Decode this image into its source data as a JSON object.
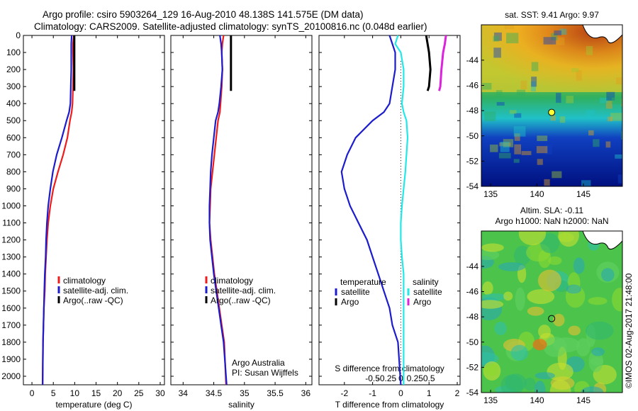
{
  "header": {
    "line1": "Argo profile: csiro 5903264_129 16-Aug-2010 48.138S 141.575E (DM data)",
    "line2": "Climatology: CARS2009. Satellite-adjusted climatology: synTS_20100816.nc (0.048d earlier)"
  },
  "footer_stamp": "©IMOS 02-Aug-2017 21:48:00",
  "colors": {
    "climatology": "#ee1c1c",
    "satellite": "#1c1ccc",
    "argo": "#000000",
    "salinity_satellite": "#22e8e8",
    "salinity_argo": "#dd22dd"
  },
  "chart_data": [
    {
      "type": "line",
      "xlabel": "temperature (deg C)",
      "xticks": [
        0,
        5,
        10,
        15,
        20,
        25,
        30
      ],
      "xlim": [
        -2,
        31
      ],
      "yticks": [
        0,
        100,
        200,
        300,
        400,
        500,
        600,
        700,
        800,
        900,
        1000,
        1100,
        1200,
        1300,
        1400,
        1500,
        1600,
        1700,
        1800,
        1900,
        2000
      ],
      "ylim": [
        2050,
        0
      ],
      "legend": [
        "climatology",
        "satellite-adj. clim.",
        "Argo(..raw -QC)"
      ],
      "series": [
        {
          "name": "climatology",
          "color": "#ee1c1c",
          "x": [
            9.8,
            9.6,
            9.6,
            9.7,
            9.6,
            9.5,
            9.3,
            8.9,
            8.3,
            7.3,
            6.1,
            5.0,
            4.3,
            3.8,
            3.5,
            3.3,
            3.1,
            3.0,
            2.8,
            2.7,
            2.6,
            2.5
          ],
          "y": [
            0,
            50,
            100,
            200,
            300,
            400,
            450,
            500,
            600,
            700,
            800,
            900,
            1000,
            1100,
            1200,
            1300,
            1400,
            1500,
            1600,
            1700,
            1800,
            2050
          ]
        },
        {
          "name": "satellite-adj. clim.",
          "color": "#1c1ccc",
          "x": [
            9.3,
            9.2,
            9.2,
            9.2,
            9.1,
            9.0,
            8.7,
            8.1,
            7.0,
            5.8,
            4.9,
            4.3,
            3.8,
            3.5,
            3.3,
            3.2,
            3.0,
            2.9,
            2.8,
            2.7,
            2.6,
            2.5
          ],
          "y": [
            0,
            50,
            100,
            200,
            300,
            400,
            450,
            500,
            600,
            700,
            800,
            900,
            1000,
            1100,
            1200,
            1300,
            1400,
            1500,
            1600,
            1700,
            1800,
            2050
          ]
        },
        {
          "name": "Argo(..raw -QC)",
          "color": "#000000",
          "x": [
            9.9,
            9.9,
            9.9,
            9.9,
            9.9
          ],
          "y": [
            0,
            100,
            200,
            300,
            325
          ]
        }
      ]
    },
    {
      "type": "line",
      "xlabel": "salinity",
      "xticks": [
        34,
        34.5,
        35,
        35.5,
        36
      ],
      "xlim": [
        33.8,
        36.1
      ],
      "yticks": [
        0,
        100,
        200,
        300,
        400,
        500,
        600,
        700,
        800,
        900,
        1000,
        1100,
        1200,
        1300,
        1400,
        1500,
        1600,
        1700,
        1800,
        1900,
        2000
      ],
      "ylim": [
        2050,
        0
      ],
      "legend": [
        "climatology",
        "satellite-adj. clim.",
        "Argo(..raw -QC)"
      ],
      "annotation": [
        "Argo Australia",
        "PI: Susan Wijffels"
      ],
      "series": [
        {
          "name": "climatology",
          "color": "#ee1c1c",
          "x": [
            34.66,
            34.64,
            34.63,
            34.64,
            34.63,
            34.61,
            34.6,
            34.57,
            34.54,
            34.51,
            34.48,
            34.45,
            34.44,
            34.43,
            34.45,
            34.48,
            34.51,
            34.55,
            34.59,
            34.63,
            34.67,
            34.7
          ],
          "y": [
            0,
            50,
            100,
            200,
            300,
            400,
            450,
            500,
            600,
            700,
            800,
            900,
            1000,
            1100,
            1200,
            1300,
            1400,
            1500,
            1600,
            1700,
            1800,
            2050
          ]
        },
        {
          "name": "satellite-adj. clim.",
          "color": "#1c1ccc",
          "x": [
            34.6,
            34.62,
            34.63,
            34.64,
            34.62,
            34.59,
            34.57,
            34.53,
            34.5,
            34.47,
            34.45,
            34.44,
            34.43,
            34.43,
            34.44,
            34.47,
            34.5,
            34.54,
            34.58,
            34.62,
            34.66,
            34.71
          ],
          "y": [
            0,
            50,
            100,
            200,
            300,
            400,
            450,
            500,
            600,
            700,
            800,
            900,
            1000,
            1100,
            1200,
            1300,
            1400,
            1500,
            1600,
            1700,
            1800,
            2050
          ]
        },
        {
          "name": "Argo(..raw -QC)",
          "color": "#000000",
          "x": [
            34.78,
            34.78,
            34.78,
            34.78,
            34.78
          ],
          "y": [
            0,
            100,
            200,
            300,
            325
          ]
        }
      ]
    },
    {
      "type": "line",
      "xlabel": "T difference from climatology",
      "xlabel_top": "S difference from climatology",
      "xticks": [
        -2,
        -1,
        0,
        1,
        2
      ],
      "xticks_top": [
        -0.5,
        -0.25,
        0,
        0.25,
        0.5
      ],
      "xlim": [
        -2.9,
        2.1
      ],
      "yticks": [
        0,
        100,
        200,
        300,
        400,
        500,
        600,
        700,
        800,
        900,
        1000,
        1100,
        1200,
        1300,
        1400,
        1500,
        1600,
        1700,
        1800,
        1900,
        2000
      ],
      "ylim": [
        2050,
        0
      ],
      "legend_groups": [
        {
          "title": "temperature",
          "items": [
            "satellite",
            "Argo"
          ]
        },
        {
          "title": "salinity",
          "items": [
            "satellite",
            "Argo"
          ]
        }
      ],
      "series": [
        {
          "name": "temperature satellite",
          "color": "#1c1ccc",
          "x": [
            -0.4,
            -0.3,
            -0.2,
            -0.2,
            -0.3,
            -0.4,
            -0.6,
            -1.0,
            -1.6,
            -1.9,
            -2.1,
            -2.0,
            -1.8,
            -1.5,
            -1.2,
            -1.0,
            -0.8,
            -0.6,
            -0.4,
            -0.3,
            -0.1,
            0.0
          ],
          "y": [
            0,
            50,
            100,
            200,
            300,
            400,
            450,
            500,
            600,
            700,
            800,
            900,
            1000,
            1100,
            1200,
            1300,
            1400,
            1500,
            1600,
            1700,
            1800,
            2050
          ]
        },
        {
          "name": "temperature Argo",
          "color": "#000000",
          "x": [
            0.9,
            0.95,
            1.0,
            1.05,
            1.0,
            0.95
          ],
          "y": [
            0,
            50,
            100,
            200,
            300,
            325
          ]
        },
        {
          "name": "salinity satellite",
          "color": "#22e8e8",
          "x": [
            -0.05,
            -0.1,
            0.0,
            0.05,
            0.05,
            0.02,
            0.05,
            0.1,
            0.12,
            0.1,
            0.08,
            0.05,
            0.02,
            0.0,
            0.0,
            0.02,
            0.05,
            0.05,
            0.05,
            0.05,
            0.05,
            0.05
          ],
          "y": [
            0,
            50,
            100,
            200,
            300,
            400,
            450,
            500,
            600,
            700,
            800,
            900,
            1000,
            1100,
            1200,
            1300,
            1400,
            1500,
            1600,
            1700,
            1800,
            2050
          ]
        },
        {
          "name": "salinity Argo",
          "color": "#dd22dd",
          "x": [
            0.8,
            0.78,
            0.75,
            0.72,
            0.7,
            0.68
          ],
          "y": [
            0,
            50,
            100,
            200,
            300,
            325
          ]
        }
      ]
    },
    {
      "type": "heatmap",
      "title": "sat. SST: 9.41 Argo: 9.97",
      "xticks": [
        135,
        140,
        145
      ],
      "yticks": [
        -44,
        -46,
        -48,
        -50,
        -52,
        -54
      ],
      "xlim": [
        134,
        149.2
      ],
      "ylim": [
        -54,
        -41.2
      ],
      "marker": {
        "lon": 141.575,
        "lat": -48.138,
        "fill": "#ffff33"
      }
    },
    {
      "type": "heatmap",
      "title": "Altim. SLA: -0.11",
      "subtitle": "Argo h1000: NaN h2000: NaN",
      "xticks": [
        135,
        140,
        145
      ],
      "yticks": [
        -44,
        -46,
        -48,
        -50,
        -52,
        -54
      ],
      "xlim": [
        134,
        149.2
      ],
      "ylim": [
        -54,
        -41.2
      ],
      "marker": {
        "lon": 141.575,
        "lat": -48.138,
        "fill": "none"
      }
    }
  ]
}
